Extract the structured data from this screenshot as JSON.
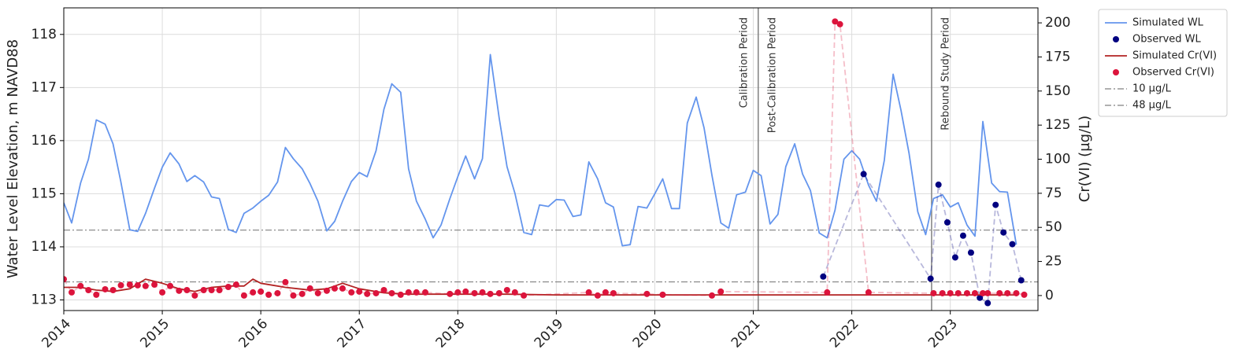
{
  "chart_data": {
    "type": "line",
    "ylabel": "Water Level Elevation, m NAVD88",
    "y2label": "Cr(VI) (µg/L)",
    "xlim": [
      2014,
      2023.89
    ],
    "xticks": [
      2014,
      2015,
      2016,
      2017,
      2018,
      2019,
      2020,
      2021,
      2022,
      2023
    ],
    "ylim": [
      112.8,
      118.5
    ],
    "yticks": [
      113,
      114,
      115,
      116,
      117,
      118
    ],
    "y2lim": [
      -11,
      211
    ],
    "y2ticks": [
      0,
      25,
      50,
      75,
      100,
      125,
      150,
      175,
      200
    ],
    "grid": true,
    "legend": "outside upper right",
    "series": [
      {
        "name": "Simulated WL",
        "type": "line",
        "color": "#6495ed",
        "axis": "y",
        "x": [
          2014,
          2014.08,
          2014.17,
          2014.25,
          2014.33,
          2014.42,
          2014.5,
          2014.58,
          2014.67,
          2014.75,
          2014.83,
          2014.92,
          2015,
          2015.08,
          2015.17,
          2015.25,
          2015.33,
          2015.42,
          2015.5,
          2015.58,
          2015.67,
          2015.75,
          2015.83,
          2015.92,
          2016,
          2016.08,
          2016.17,
          2016.25,
          2016.33,
          2016.42,
          2016.5,
          2016.58,
          2016.67,
          2016.75,
          2016.83,
          2016.92,
          2017,
          2017.08,
          2017.17,
          2017.25,
          2017.33,
          2017.42,
          2017.5,
          2017.58,
          2017.67,
          2017.75,
          2017.83,
          2017.92,
          2018,
          2018.08,
          2018.17,
          2018.25,
          2018.33,
          2018.42,
          2018.5,
          2018.58,
          2018.67,
          2018.75,
          2018.83,
          2018.92,
          2019,
          2019.08,
          2019.17,
          2019.25,
          2019.33,
          2019.42,
          2019.5,
          2019.58,
          2019.67,
          2019.75,
          2019.83,
          2019.92,
          2020,
          2020.08,
          2020.17,
          2020.25,
          2020.33,
          2020.42,
          2020.5,
          2020.58,
          2020.67,
          2020.75,
          2020.83,
          2020.92,
          2021,
          2021.08,
          2021.17,
          2021.25,
          2021.33,
          2021.42,
          2021.5,
          2021.58,
          2021.67,
          2021.75,
          2021.83,
          2021.92,
          2022,
          2022.08,
          2022.17,
          2022.25,
          2022.33,
          2022.42,
          2022.5,
          2022.58,
          2022.67,
          2022.75,
          2022.83,
          2022.92,
          2023,
          2023.08,
          2023.17,
          2023.25,
          2023.33,
          2023.42,
          2023.5,
          2023.58,
          2023.67
        ],
        "values": [
          114.83,
          114.45,
          115.2,
          115.65,
          116.39,
          116.31,
          115.94,
          115.22,
          114.32,
          114.29,
          114.63,
          115.1,
          115.5,
          115.77,
          115.56,
          115.23,
          115.34,
          115.22,
          114.94,
          114.91,
          114.33,
          114.27,
          114.63,
          114.73,
          114.86,
          114.97,
          115.22,
          115.87,
          115.66,
          115.47,
          115.19,
          114.86,
          114.3,
          114.48,
          114.86,
          115.23,
          115.4,
          115.32,
          115.81,
          116.59,
          117.07,
          116.91,
          115.47,
          114.86,
          114.52,
          114.17,
          114.41,
          114.91,
          115.32,
          115.71,
          115.28,
          115.66,
          117.62,
          116.43,
          115.51,
          115.01,
          114.27,
          114.23,
          114.79,
          114.76,
          114.89,
          114.88,
          114.57,
          114.6,
          115.6,
          115.28,
          114.83,
          114.75,
          114.02,
          114.04,
          114.76,
          114.73,
          115.0,
          115.28,
          114.72,
          114.72,
          116.33,
          116.82,
          116.24,
          115.35,
          114.45,
          114.35,
          114.98,
          115.03,
          115.44,
          115.34,
          114.43,
          114.61,
          115.51,
          115.94,
          115.37,
          115.06,
          114.26,
          114.17,
          114.69,
          115.65,
          115.81,
          115.65,
          115.16,
          114.86,
          115.63,
          117.25,
          116.57,
          115.77,
          114.66,
          114.23,
          114.91,
          114.98,
          114.75,
          114.83,
          114.41,
          114.2,
          116.36,
          115.2,
          115.04,
          115.03,
          114.04
        ]
      },
      {
        "name": "Observed WL",
        "type": "scatter",
        "color": "#000080",
        "axis": "y",
        "connect": "dashed",
        "x": [
          2021.71,
          2022.12,
          2022.8,
          2022.88,
          2022.97,
          2023.05,
          2023.13,
          2023.21,
          2023.3,
          2023.38,
          2023.46,
          2023.54,
          2023.63,
          2023.72
        ],
        "values": [
          113.44,
          115.37,
          113.4,
          115.17,
          114.46,
          113.8,
          114.21,
          113.89,
          113.04,
          112.94,
          114.79,
          114.27,
          114.05,
          113.37
        ]
      },
      {
        "name": "Simulated Cr(VI)",
        "type": "line",
        "color": "#b22222",
        "axis": "y2",
        "x": [
          2014,
          2014.17,
          2014.33,
          2014.5,
          2014.67,
          2014.83,
          2015,
          2015.17,
          2015.33,
          2015.5,
          2015.67,
          2015.83,
          2015.92,
          2016,
          2016.25,
          2016.5,
          2016.67,
          2016.83,
          2017,
          2017.25,
          2017.5,
          2018,
          2018.5,
          2019,
          2020,
          2021,
          2022,
          2023,
          2023.67
        ],
        "values": [
          6,
          6,
          4,
          3,
          5,
          12,
          9,
          5,
          3,
          6,
          7,
          7,
          12,
          9,
          6,
          4,
          5,
          9,
          5,
          2,
          1,
          1,
          1,
          0.5,
          0.5,
          0.5,
          0.5,
          0.5,
          0.5
        ]
      },
      {
        "name": "Observed Cr(VI)",
        "type": "scatter",
        "color": "#dc143c",
        "axis": "y2",
        "connect": "dashed",
        "x": [
          2014,
          2014.08,
          2014.17,
          2014.25,
          2014.33,
          2014.42,
          2014.5,
          2014.58,
          2014.67,
          2014.75,
          2014.83,
          2014.92,
          2015,
          2015.08,
          2015.17,
          2015.25,
          2015.33,
          2015.42,
          2015.5,
          2015.58,
          2015.67,
          2015.75,
          2015.83,
          2015.92,
          2016,
          2016.08,
          2016.17,
          2016.25,
          2016.33,
          2016.42,
          2016.5,
          2016.58,
          2016.67,
          2016.75,
          2016.83,
          2016.92,
          2017,
          2017.08,
          2017.17,
          2017.25,
          2017.33,
          2017.42,
          2017.5,
          2017.58,
          2017.67,
          2017.92,
          2018,
          2018.08,
          2018.17,
          2018.25,
          2018.33,
          2018.42,
          2018.5,
          2018.58,
          2018.67,
          2019.33,
          2019.42,
          2019.5,
          2019.58,
          2019.92,
          2020.08,
          2020.58,
          2020.67,
          2021.75,
          2021.83,
          2021.88,
          2022.17,
          2022.83,
          2022.92,
          2023,
          2023.08,
          2023.17,
          2023.25,
          2023.33,
          2023.38,
          2023.5,
          2023.58,
          2023.67,
          2023.75
        ],
        "values": [
          12,
          2.3,
          7,
          4,
          0.6,
          4.6,
          4,
          7.5,
          8,
          7.5,
          7,
          8,
          2.3,
          7,
          3.5,
          4,
          0,
          4,
          4,
          4,
          6.3,
          8,
          0,
          2.3,
          2.9,
          0.6,
          1.7,
          9.8,
          0,
          1.2,
          5.2,
          1.7,
          3.5,
          5.2,
          5.2,
          2.3,
          2.9,
          1.2,
          1.7,
          4,
          1.7,
          0.6,
          2.3,
          2.3,
          2.3,
          1.2,
          2.3,
          2.9,
          1.7,
          2.3,
          1.2,
          1.7,
          4,
          2.3,
          0,
          2.3,
          0,
          2.3,
          1.7,
          1.2,
          0.6,
          0,
          2.9,
          2.3,
          201,
          199,
          2.3,
          1.7,
          1.7,
          1.7,
          1.7,
          1.7,
          1.7,
          1.7,
          1.7,
          1.7,
          1.7,
          1.7,
          0.6
        ]
      }
    ],
    "hlines": [
      {
        "name": "10 µg/L",
        "value": 10,
        "axis": "y2",
        "color": "#808080"
      },
      {
        "name": "48 µg/L",
        "value": 48,
        "axis": "y2",
        "color": "#808080"
      }
    ],
    "vlines": [
      {
        "x": 2021.05,
        "labels": [
          "Calibration Period",
          "Post-Calibration Period"
        ]
      },
      {
        "x": 2022.81,
        "labels": [
          "Rebound Study Period"
        ]
      }
    ]
  }
}
